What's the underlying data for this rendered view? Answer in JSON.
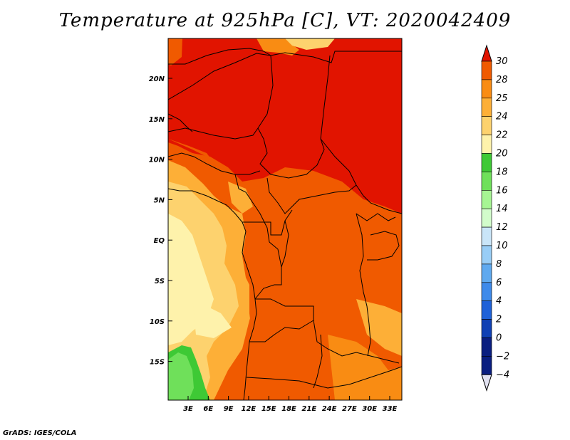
{
  "title": "Temperature at 925hPa [C], VT: 2020042409",
  "credit": "GrADS: IGES/COLA",
  "map": {
    "lat_ticks": [
      "20N",
      "15N",
      "10N",
      "5N",
      "EQ",
      "5S",
      "10S",
      "15S"
    ],
    "lon_ticks": [
      "3E",
      "6E",
      "9E",
      "12E",
      "15E",
      "18E",
      "21E",
      "24E",
      "27E",
      "30E",
      "33E"
    ]
  },
  "colorbar": {
    "labels": [
      "30",
      "28",
      "25",
      "24",
      "22",
      "20",
      "18",
      "16",
      "14",
      "12",
      "10",
      "8",
      "6",
      "4",
      "2",
      "0",
      "−2",
      "−4"
    ],
    "colors": [
      "#e11400",
      "#f05a00",
      "#f98c13",
      "#fdaf37",
      "#fdd26e",
      "#fef2ab",
      "#3ec935",
      "#6fe05a",
      "#a6f593",
      "#d2fccb",
      "#c9e5f8",
      "#98cdf6",
      "#5fa9ef",
      "#3e8aea",
      "#1e61d8",
      "#0f40b4",
      "#0a1e80",
      "#e1e1f0"
    ]
  }
}
